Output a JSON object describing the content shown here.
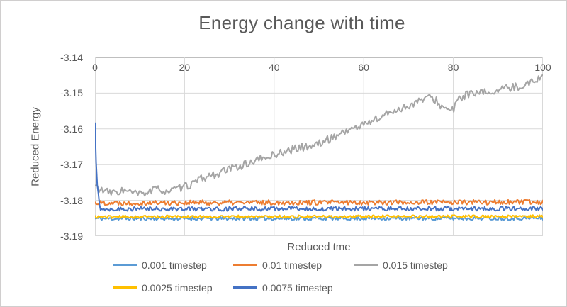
{
  "chart_data": {
    "type": "line",
    "title": "Energy change with time",
    "xlabel": "Reduced tme",
    "ylabel": "Reduced Energy",
    "xlim": [
      0,
      100
    ],
    "ylim": [
      -3.19,
      -3.14
    ],
    "x_ticks": [
      "0",
      "20",
      "40",
      "60",
      "80",
      "100"
    ],
    "y_ticks": [
      "-3.14",
      "-3.15",
      "-3.16",
      "-3.17",
      "-3.18",
      "-3.19"
    ],
    "grid": true,
    "legend_position": "bottom",
    "text_color": "#595959",
    "gridline_color": "#d9d9d9",
    "axisline_color": "#bfbfbf",
    "series": [
      {
        "name": "0.001 timestep",
        "color": "#5B9BD5",
        "noise": 0.0005,
        "seed": 11,
        "step": 0.25,
        "keypoints": {
          "x": [
            0,
            100
          ],
          "y": [
            -3.1851,
            -3.185
          ]
        }
      },
      {
        "name": "0.01 timestep",
        "color": "#ED7D31",
        "noise": 0.0007,
        "seed": 22,
        "step": 0.25,
        "keypoints": {
          "x": [
            0,
            100
          ],
          "y": [
            -3.1807,
            -3.1805
          ]
        }
      },
      {
        "name": "0.015 timestep",
        "color": "#A5A5A5",
        "noise": 0.0011,
        "seed": 33,
        "step": 0.3,
        "keypoints": {
          "x": [
            0,
            2,
            4,
            6,
            8,
            10,
            12,
            14,
            16,
            18,
            20,
            22,
            24,
            26,
            28,
            30,
            32,
            34,
            36,
            38,
            40,
            42,
            44,
            46,
            48,
            50,
            52,
            54,
            56,
            58,
            60,
            62,
            64,
            66,
            68,
            70,
            72,
            74,
            76,
            78,
            80,
            81,
            83,
            85,
            87,
            89,
            91,
            93,
            95,
            97,
            100
          ],
          "y": [
            -3.176,
            -3.1775,
            -3.178,
            -3.1772,
            -3.1778,
            -3.1783,
            -3.1776,
            -3.1768,
            -3.1775,
            -3.177,
            -3.1762,
            -3.1752,
            -3.1738,
            -3.173,
            -3.1724,
            -3.1712,
            -3.1705,
            -3.1698,
            -3.1688,
            -3.1682,
            -3.1672,
            -3.1665,
            -3.1658,
            -3.1652,
            -3.1648,
            -3.1642,
            -3.163,
            -3.1618,
            -3.1605,
            -3.1598,
            -3.1588,
            -3.1575,
            -3.1568,
            -3.1552,
            -3.1545,
            -3.1535,
            -3.1525,
            -3.1512,
            -3.1518,
            -3.1545,
            -3.1548,
            -3.152,
            -3.1502,
            -3.1504,
            -3.1498,
            -3.1495,
            -3.149,
            -3.1484,
            -3.148,
            -3.1472,
            -3.1452
          ]
        }
      },
      {
        "name": "0.0025 timestep",
        "color": "#FFC000",
        "noise": 0.0004,
        "seed": 44,
        "step": 0.25,
        "keypoints": {
          "x": [
            0,
            100
          ],
          "y": [
            -3.1846,
            -3.1845
          ]
        }
      },
      {
        "name": "0.0075 timestep",
        "color": "#4472C4",
        "noise": 0.0006,
        "seed": 55,
        "step": 0.25,
        "keypoints": {
          "x": [
            0,
            0.35,
            1.2,
            100
          ],
          "y": [
            -3.1583,
            -3.1745,
            -3.1824,
            -3.1823
          ]
        }
      }
    ],
    "legend_rows": [
      [
        0,
        1,
        2
      ],
      [
        3,
        4
      ]
    ]
  }
}
